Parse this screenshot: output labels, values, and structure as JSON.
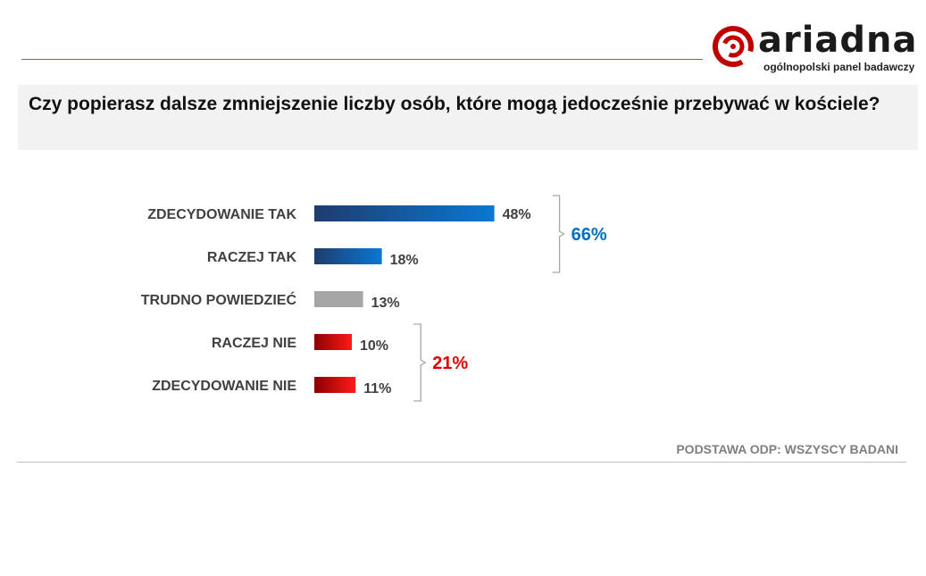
{
  "brand": {
    "name": "ariadna",
    "tagline": "ogólnopolski panel badawczy",
    "color": "#c00000"
  },
  "question": "Czy popierasz dalsze zmniejszenie liczby osób, które mogą jedocześnie przebywać w kościele?",
  "footer": "PODSTAWA ODP: WSZYSCY BADANI",
  "chart_data": {
    "type": "bar",
    "orientation": "horizontal",
    "categories": [
      "ZDECYDOWANIE TAK",
      "RACZEJ TAK",
      "TRUDNO POWIEDZIEĆ",
      "RACZEJ NIE",
      "ZDECYDOWANIE NIE"
    ],
    "values": [
      48,
      18,
      13,
      10,
      11
    ],
    "value_labels": [
      "48%",
      "18%",
      "13%",
      "10%",
      "11%"
    ],
    "colors": [
      "#0070c0",
      "#0070c0",
      "#a6a6a6",
      "#e00000",
      "#e00000"
    ],
    "groups": [
      {
        "label": "66%",
        "from": 0,
        "to": 1,
        "color": "#0070c0"
      },
      {
        "label": "21%",
        "from": 3,
        "to": 4,
        "color": "#e00000"
      }
    ],
    "xlim": [
      0,
      100
    ]
  }
}
